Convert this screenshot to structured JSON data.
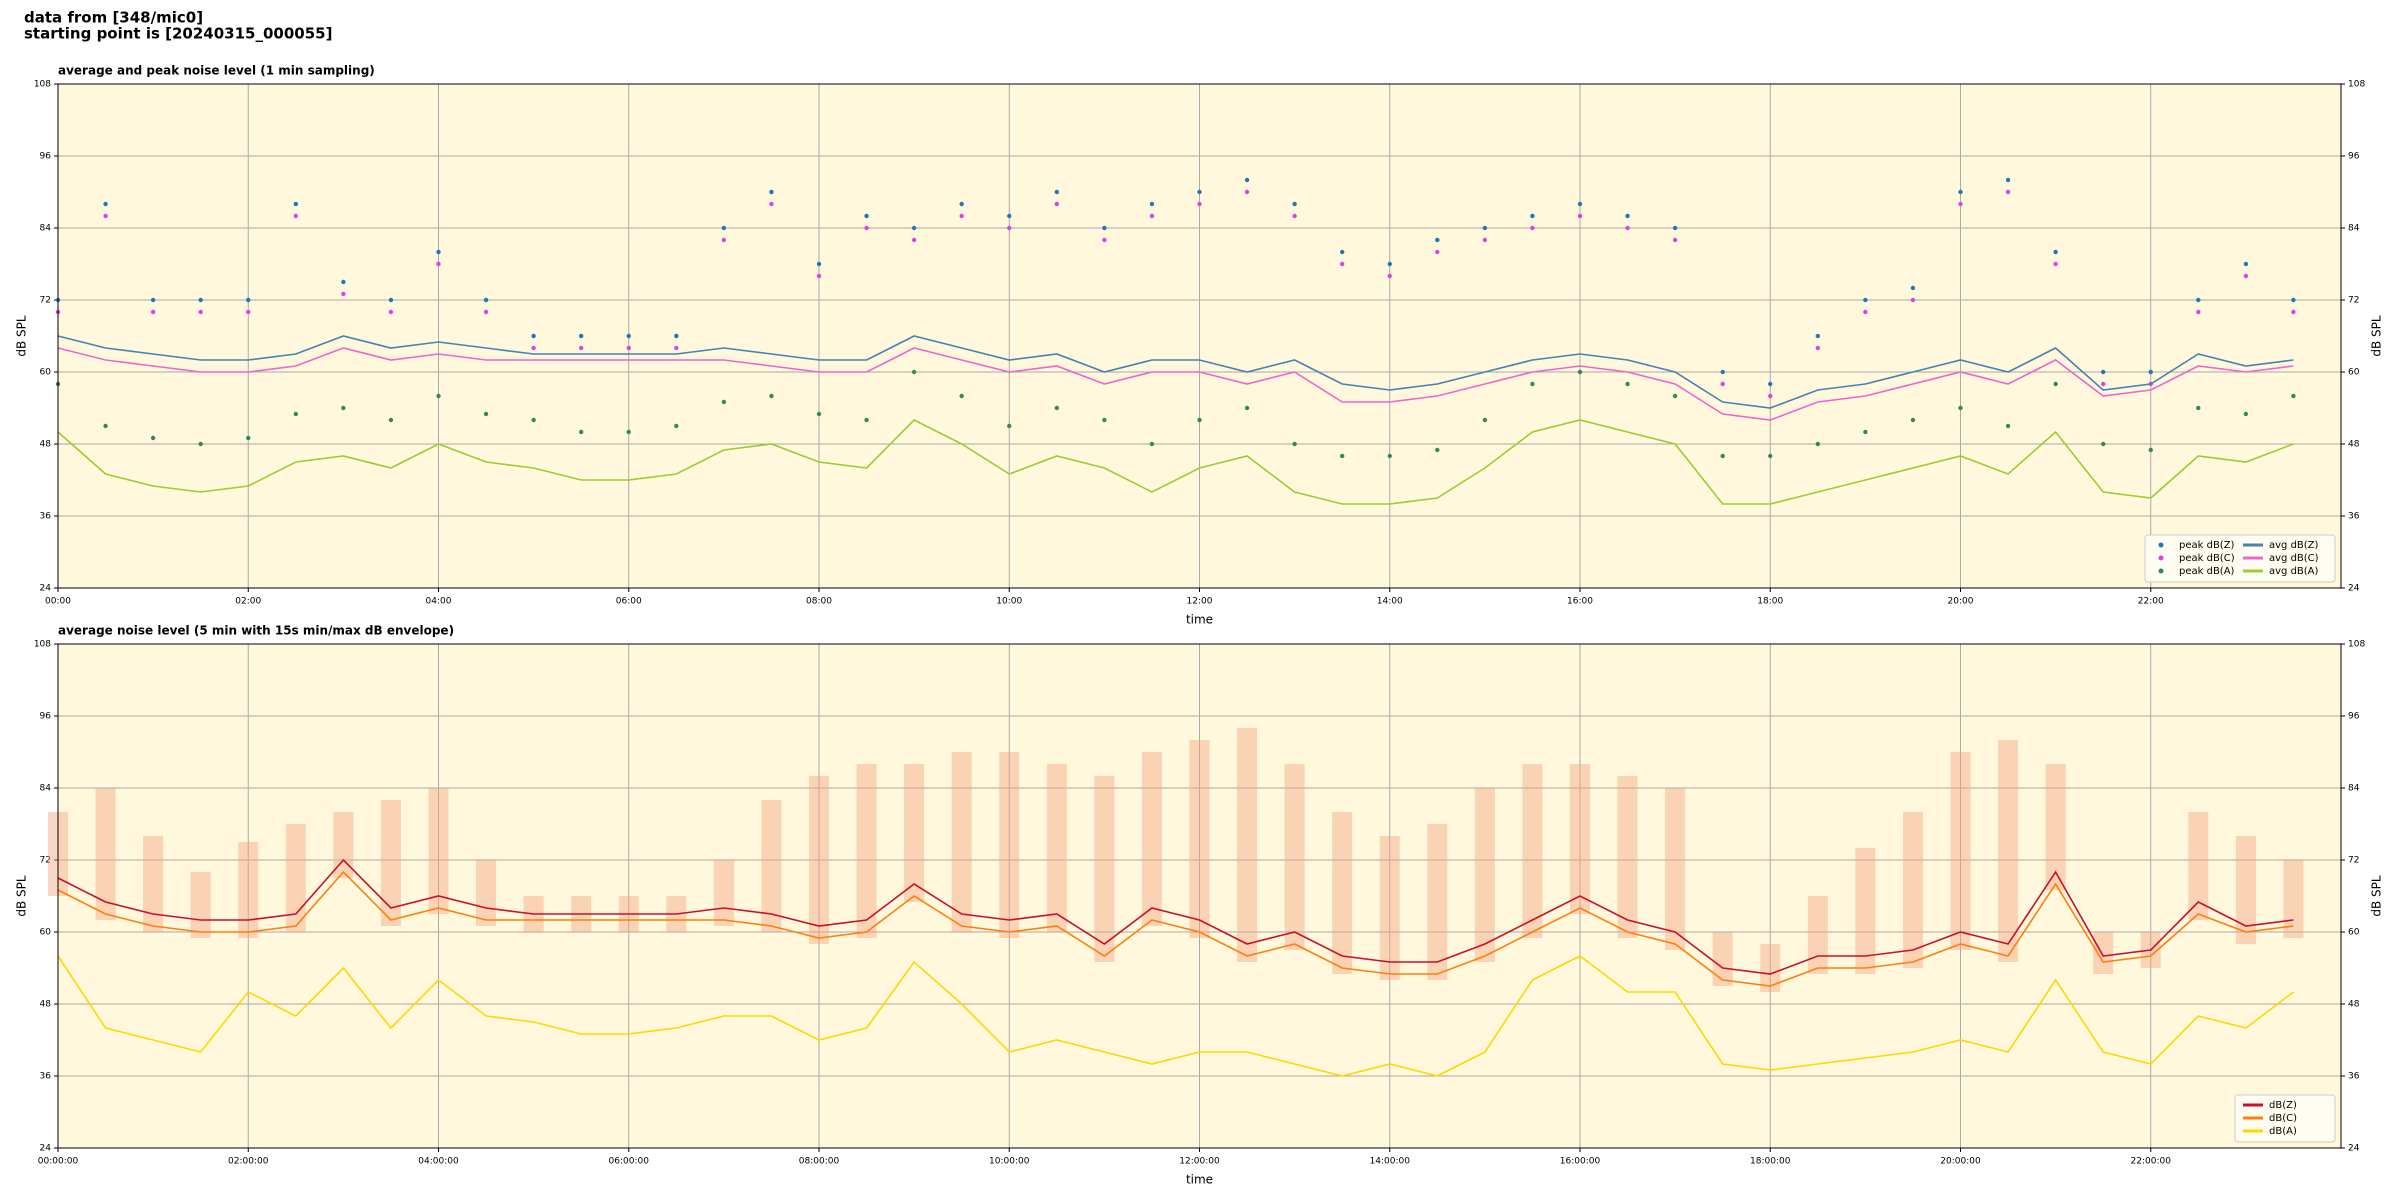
{
  "header": [
    "data from [348/mic0]",
    "starting point is [20240315_000055]"
  ],
  "chart_data": [
    {
      "type": "line",
      "title": "average and peak noise level (1 min sampling)",
      "xlabel": "time",
      "ylabel": "dB SPL",
      "background": "#fff8dc",
      "grid": true,
      "legend": "lower right",
      "legend_columns": 2,
      "xlim": [
        0,
        24
      ],
      "ylim": [
        24,
        108
      ],
      "yticks": [
        24,
        36,
        48,
        60,
        72,
        84,
        96,
        108
      ],
      "xticks": [
        {
          "value": 0,
          "label": "00:00"
        },
        {
          "value": 2,
          "label": "02:00"
        },
        {
          "value": 4,
          "label": "04:00"
        },
        {
          "value": 6,
          "label": "06:00"
        },
        {
          "value": 8,
          "label": "08:00"
        },
        {
          "value": 10,
          "label": "10:00"
        },
        {
          "value": 12,
          "label": "12:00"
        },
        {
          "value": 14,
          "label": "14:00"
        },
        {
          "value": 16,
          "label": "16:00"
        },
        {
          "value": 18,
          "label": "18:00"
        },
        {
          "value": 20,
          "label": "20:00"
        },
        {
          "value": 22,
          "label": "22:00"
        }
      ],
      "x": [
        0,
        0.5,
        1,
        1.5,
        2,
        2.5,
        3,
        3.5,
        4,
        4.5,
        5,
        5.5,
        6,
        6.5,
        7,
        7.5,
        8,
        8.5,
        9,
        9.5,
        10,
        10.5,
        11,
        11.5,
        12,
        12.5,
        13,
        13.5,
        14,
        14.5,
        15,
        15.5,
        16,
        16.5,
        17,
        17.5,
        18,
        18.5,
        19,
        19.5,
        20,
        20.5,
        21,
        21.5,
        22,
        22.5,
        23,
        23.5
      ],
      "series": [
        {
          "name": "peak dB(Z)",
          "kind": "scatter",
          "color": "#1f77b4",
          "values": [
            72,
            88,
            72,
            72,
            72,
            88,
            75,
            72,
            80,
            72,
            66,
            66,
            66,
            66,
            84,
            90,
            78,
            86,
            84,
            88,
            86,
            90,
            84,
            88,
            90,
            92,
            88,
            80,
            78,
            82,
            84,
            86,
            88,
            86,
            84,
            60,
            58,
            66,
            72,
            74,
            90,
            92,
            80,
            60,
            60,
            72,
            78,
            72
          ]
        },
        {
          "name": "peak dB(C)",
          "kind": "scatter",
          "color": "#e040e0",
          "values": [
            70,
            86,
            70,
            70,
            70,
            86,
            73,
            70,
            78,
            70,
            64,
            64,
            64,
            64,
            82,
            88,
            76,
            84,
            82,
            86,
            84,
            88,
            82,
            86,
            88,
            90,
            86,
            78,
            76,
            80,
            82,
            84,
            86,
            84,
            82,
            58,
            56,
            64,
            70,
            72,
            88,
            90,
            78,
            58,
            58,
            70,
            76,
            70
          ]
        },
        {
          "name": "peak dB(A)",
          "kind": "scatter",
          "color": "#2e8b57",
          "values": [
            58,
            51,
            49,
            48,
            49,
            53,
            54,
            52,
            56,
            53,
            52,
            50,
            50,
            51,
            55,
            56,
            53,
            52,
            60,
            56,
            51,
            54,
            52,
            48,
            52,
            54,
            48,
            46,
            46,
            47,
            52,
            58,
            60,
            58,
            56,
            46,
            46,
            48,
            50,
            52,
            54,
            51,
            58,
            48,
            47,
            54,
            53,
            56
          ]
        },
        {
          "name": "avg dB(Z)",
          "kind": "line",
          "color": "#4682b4",
          "values": [
            66,
            64,
            63,
            62,
            62,
            63,
            66,
            64,
            65,
            64,
            63,
            63,
            63,
            63,
            64,
            63,
            62,
            62,
            66,
            64,
            62,
            63,
            60,
            62,
            62,
            60,
            62,
            58,
            57,
            58,
            60,
            62,
            63,
            62,
            60,
            55,
            54,
            57,
            58,
            60,
            62,
            60,
            64,
            57,
            58,
            63,
            61,
            62
          ]
        },
        {
          "name": "avg dB(C)",
          "kind": "line",
          "color": "#ee66cc",
          "values": [
            64,
            62,
            61,
            60,
            60,
            61,
            64,
            62,
            63,
            62,
            62,
            62,
            62,
            62,
            62,
            61,
            60,
            60,
            64,
            62,
            60,
            61,
            58,
            60,
            60,
            58,
            60,
            55,
            55,
            56,
            58,
            60,
            61,
            60,
            58,
            53,
            52,
            55,
            56,
            58,
            60,
            58,
            62,
            56,
            57,
            61,
            60,
            61
          ]
        },
        {
          "name": "avg dB(A)",
          "kind": "line",
          "color": "#9acd32",
          "values": [
            50,
            43,
            41,
            40,
            41,
            45,
            46,
            44,
            48,
            45,
            44,
            42,
            42,
            43,
            47,
            48,
            45,
            44,
            52,
            48,
            43,
            46,
            44,
            40,
            44,
            46,
            40,
            38,
            38,
            39,
            44,
            50,
            52,
            50,
            48,
            38,
            38,
            40,
            42,
            44,
            46,
            43,
            50,
            40,
            39,
            46,
            45,
            48
          ]
        }
      ]
    },
    {
      "type": "line",
      "title": "average noise level (5 min with 15s min/max dB envelope)",
      "xlabel": "time",
      "ylabel": "dB SPL",
      "background": "#fff8dc",
      "grid": true,
      "legend": "lower right",
      "legend_columns": 1,
      "xlim": [
        0,
        24
      ],
      "ylim": [
        24,
        108
      ],
      "yticks": [
        24,
        36,
        48,
        60,
        72,
        84,
        96,
        108
      ],
      "xticks": [
        {
          "value": 0,
          "label": "00:00:00"
        },
        {
          "value": 2,
          "label": "02:00:00"
        },
        {
          "value": 4,
          "label": "04:00:00"
        },
        {
          "value": 6,
          "label": "06:00:00"
        },
        {
          "value": 8,
          "label": "08:00:00"
        },
        {
          "value": 10,
          "label": "10:00:00"
        },
        {
          "value": 12,
          "label": "12:00:00"
        },
        {
          "value": 14,
          "label": "14:00:00"
        },
        {
          "value": 16,
          "label": "16:00:00"
        },
        {
          "value": 18,
          "label": "18:00:00"
        },
        {
          "value": 20,
          "label": "20:00:00"
        },
        {
          "value": 22,
          "label": "22:00:00"
        }
      ],
      "x": [
        0,
        0.5,
        1,
        1.5,
        2,
        2.5,
        3,
        3.5,
        4,
        4.5,
        5,
        5.5,
        6,
        6.5,
        7,
        7.5,
        8,
        8.5,
        9,
        9.5,
        10,
        10.5,
        11,
        11.5,
        12,
        12.5,
        13,
        13.5,
        14,
        14.5,
        15,
        15.5,
        16,
        16.5,
        17,
        17.5,
        18,
        18.5,
        19,
        19.5,
        20,
        20.5,
        21,
        21.5,
        22,
        22.5,
        23,
        23.5
      ],
      "envelope": {
        "color": "#f4a582",
        "low": [
          66,
          62,
          60,
          59,
          59,
          60,
          69,
          61,
          63,
          61,
          60,
          60,
          60,
          60,
          61,
          60,
          58,
          59,
          65,
          60,
          59,
          60,
          55,
          61,
          59,
          55,
          57,
          53,
          52,
          52,
          55,
          59,
          63,
          59,
          57,
          51,
          50,
          53,
          53,
          54,
          57,
          55,
          67,
          53,
          54,
          62,
          58,
          59
        ],
        "high": [
          80,
          84,
          76,
          70,
          75,
          78,
          80,
          82,
          84,
          72,
          66,
          66,
          66,
          66,
          72,
          82,
          86,
          88,
          88,
          90,
          90,
          88,
          86,
          90,
          92,
          94,
          88,
          80,
          76,
          78,
          84,
          88,
          88,
          86,
          84,
          60,
          58,
          66,
          74,
          80,
          90,
          92,
          88,
          60,
          60,
          80,
          76,
          72
        ]
      },
      "series": [
        {
          "name": "dB(Z)",
          "kind": "line",
          "color": "#c8102e",
          "values": [
            69,
            65,
            63,
            62,
            62,
            63,
            72,
            64,
            66,
            64,
            63,
            63,
            63,
            63,
            64,
            63,
            61,
            62,
            68,
            63,
            62,
            63,
            58,
            64,
            62,
            58,
            60,
            56,
            55,
            55,
            58,
            62,
            66,
            62,
            60,
            54,
            53,
            56,
            56,
            57,
            60,
            58,
            70,
            56,
            57,
            65,
            61,
            62
          ]
        },
        {
          "name": "dB(C)",
          "kind": "line",
          "color": "#ff7f0e",
          "values": [
            67,
            63,
            61,
            60,
            60,
            61,
            70,
            62,
            64,
            62,
            62,
            62,
            62,
            62,
            62,
            61,
            59,
            60,
            66,
            61,
            60,
            61,
            56,
            62,
            60,
            56,
            58,
            54,
            53,
            53,
            56,
            60,
            64,
            60,
            58,
            52,
            51,
            54,
            54,
            55,
            58,
            56,
            68,
            55,
            56,
            63,
            60,
            61
          ]
        },
        {
          "name": "dB(A)",
          "kind": "line",
          "color": "#ffd700",
          "values": [
            56,
            44,
            42,
            40,
            50,
            46,
            54,
            44,
            52,
            46,
            45,
            43,
            43,
            44,
            46,
            46,
            42,
            44,
            55,
            48,
            40,
            42,
            40,
            38,
            40,
            40,
            38,
            36,
            38,
            36,
            40,
            52,
            56,
            50,
            50,
            38,
            37,
            38,
            39,
            40,
            42,
            40,
            52,
            40,
            38,
            46,
            44,
            50
          ]
        }
      ]
    }
  ]
}
